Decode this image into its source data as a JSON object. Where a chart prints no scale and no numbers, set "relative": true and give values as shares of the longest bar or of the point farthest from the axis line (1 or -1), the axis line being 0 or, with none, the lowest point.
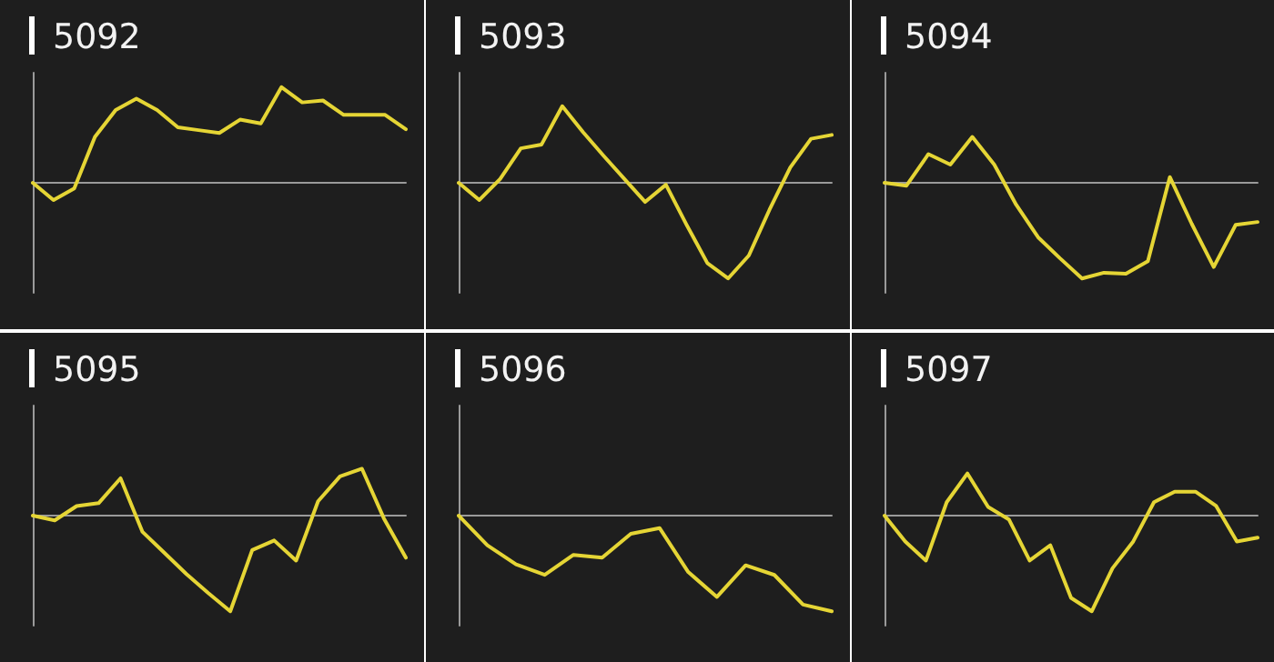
{
  "chart_data": [
    {
      "type": "line",
      "title": "5092",
      "relative": true,
      "grid": false,
      "marker": "none",
      "color": "#e5d535",
      "categories": [
        null,
        null,
        null,
        null,
        null,
        null,
        null,
        null,
        null,
        null,
        null,
        null,
        null,
        null,
        null,
        null,
        null,
        null,
        null
      ],
      "values": [
        0,
        -0.18,
        -0.06,
        0.48,
        0.76,
        0.88,
        0.76,
        0.58,
        0.55,
        0.52,
        0.66,
        0.62,
        1,
        0.84,
        0.86,
        0.71,
        0.71,
        0.71,
        0.56
      ]
    },
    {
      "type": "line",
      "title": "5093",
      "relative": true,
      "grid": false,
      "marker": "none",
      "color": "#e5d535",
      "categories": [
        null,
        null,
        null,
        null,
        null,
        null,
        null,
        null,
        null,
        null,
        null,
        null,
        null,
        null,
        null,
        null,
        null,
        null,
        null
      ],
      "values": [
        0,
        -0.18,
        0.04,
        0.36,
        0.4,
        0.8,
        0.53,
        0.28,
        0.04,
        -0.2,
        -0.02,
        -0.44,
        -0.84,
        -1,
        -0.76,
        -0.28,
        0.16,
        0.46,
        0.5
      ]
    },
    {
      "type": "line",
      "title": "5094",
      "relative": true,
      "grid": false,
      "marker": "none",
      "color": "#e5d535",
      "categories": [
        null,
        null,
        null,
        null,
        null,
        null,
        null,
        null,
        null,
        null,
        null,
        null,
        null,
        null,
        null,
        null,
        null,
        null
      ],
      "values": [
        0,
        -0.03,
        0.3,
        0.19,
        0.48,
        0.19,
        -0.23,
        -0.57,
        -0.79,
        -1,
        -0.94,
        -0.95,
        -0.82,
        0.06,
        -0.43,
        -0.88,
        -0.44,
        -0.41
      ]
    },
    {
      "type": "line",
      "title": "5095",
      "relative": true,
      "grid": false,
      "marker": "none",
      "color": "#e5d535",
      "categories": [
        null,
        null,
        null,
        null,
        null,
        null,
        null,
        null,
        null,
        null,
        null,
        null,
        null,
        null,
        null,
        null,
        null,
        null
      ],
      "values": [
        0,
        -0.05,
        0.1,
        0.13,
        0.39,
        -0.17,
        -0.39,
        -0.61,
        -0.81,
        -1,
        -0.36,
        -0.26,
        -0.47,
        0.15,
        0.41,
        0.49,
        -0.03,
        -0.44
      ]
    },
    {
      "type": "line",
      "title": "5096",
      "relative": true,
      "grid": false,
      "marker": "none",
      "color": "#e5d535",
      "categories": [
        null,
        null,
        null,
        null,
        null,
        null,
        null,
        null,
        null,
        null,
        null,
        null,
        null,
        null
      ],
      "values": [
        0,
        -0.31,
        -0.51,
        -0.62,
        -0.41,
        -0.44,
        -0.19,
        -0.13,
        -0.59,
        -0.85,
        -0.52,
        -0.62,
        -0.93,
        -1
      ]
    },
    {
      "type": "line",
      "title": "5097",
      "relative": true,
      "grid": false,
      "marker": "none",
      "color": "#e5d535",
      "categories": [
        null,
        null,
        null,
        null,
        null,
        null,
        null,
        null,
        null,
        null,
        null,
        null,
        null,
        null,
        null,
        null,
        null,
        null,
        null
      ],
      "values": [
        0,
        -0.27,
        -0.47,
        0.14,
        0.44,
        0.09,
        -0.04,
        -0.47,
        -0.31,
        -0.86,
        -1,
        -0.55,
        -0.27,
        0.14,
        0.25,
        0.25,
        0.1,
        -0.27,
        -0.23
      ]
    }
  ]
}
